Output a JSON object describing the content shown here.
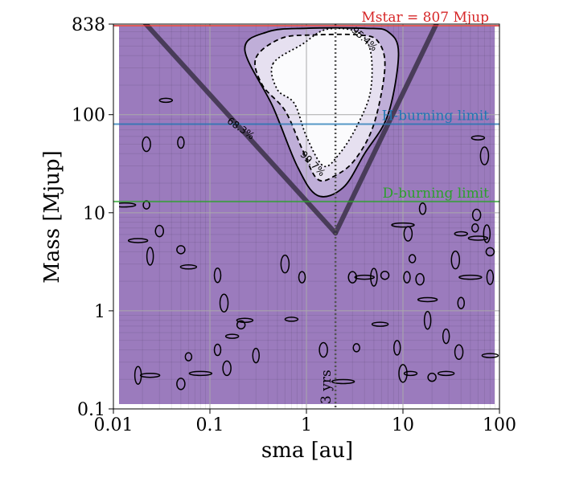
{
  "chart_data": {
    "type": "contour",
    "xlabel": "sma [au]",
    "ylabel": "Mass [Mjup]",
    "xscale": "log",
    "yscale": "log",
    "xlim": [
      0.01,
      100
    ],
    "ylim": [
      0.1,
      838
    ],
    "xticks": [
      {
        "value": 0.01,
        "label": "0.01"
      },
      {
        "value": 0.1,
        "label": "0.1"
      },
      {
        "value": 1,
        "label": "1"
      },
      {
        "value": 10,
        "label": "10"
      },
      {
        "value": 100,
        "label": "100"
      }
    ],
    "yticks": [
      {
        "value": 0.1,
        "label": "0.1"
      },
      {
        "value": 1,
        "label": "1"
      },
      {
        "value": 10,
        "label": "10"
      },
      {
        "value": 100,
        "label": "100"
      },
      {
        "value": 838,
        "label": "838"
      }
    ],
    "hlines": [
      {
        "name": "mstar",
        "label": "Mstar = 807 Mjup",
        "y": 807,
        "color": "#d62728"
      },
      {
        "name": "h-burning",
        "label": "H-burning limit",
        "y": 80,
        "color": "#1f77b4"
      },
      {
        "name": "d-burning",
        "label": "D-burning limit",
        "y": 13,
        "color": "#2ca02c"
      }
    ],
    "vline": {
      "label": "3 yrs",
      "x": 2.0
    },
    "v_shape": {
      "vertex": [
        2.0,
        6.2
      ],
      "left_end": [
        0.014,
        1350
      ],
      "right_end": [
        28,
        1350
      ]
    },
    "contour_levels": [
      {
        "label": "68.3%",
        "label_at": [
          0.2,
          68
        ]
      },
      {
        "label": "95.4%",
        "label_at": [
          3.8,
          560
        ]
      },
      {
        "label": "99.7%",
        "label_at": [
          1.1,
          30
        ]
      }
    ],
    "background_color": "#9b7bbd",
    "contours": {
      "level_68": [
        [
          0.23,
          460
        ],
        [
          0.4,
          700
        ],
        [
          1.0,
          760
        ],
        [
          4.0,
          760
        ],
        [
          7.0,
          700
        ],
        [
          9.0,
          420
        ],
        [
          7.0,
          100
        ],
        [
          4.0,
          40
        ],
        [
          2.4,
          18
        ],
        [
          1.3,
          15
        ],
        [
          0.8,
          30
        ],
        [
          0.45,
          120
        ]
      ],
      "level_95": [
        [
          0.3,
          380
        ],
        [
          0.55,
          600
        ],
        [
          1.2,
          650
        ],
        [
          3.5,
          650
        ],
        [
          5.5,
          560
        ],
        [
          6.5,
          300
        ],
        [
          5.0,
          80
        ],
        [
          3.2,
          35
        ],
        [
          2.0,
          24
        ],
        [
          1.3,
          22
        ],
        [
          0.9,
          45
        ],
        [
          0.6,
          110
        ],
        [
          0.35,
          200
        ]
      ],
      "level_997": [
        [
          0.45,
          330
        ],
        [
          0.9,
          520
        ],
        [
          1.6,
          740
        ],
        [
          3.3,
          700
        ],
        [
          4.6,
          450
        ],
        [
          4.6,
          170
        ],
        [
          3.3,
          75
        ],
        [
          2.2,
          40
        ],
        [
          1.5,
          30
        ],
        [
          1.0,
          60
        ],
        [
          0.75,
          130
        ],
        [
          0.5,
          180
        ]
      ]
    },
    "noise_blobs": [
      [
        0.035,
        140
      ],
      [
        0.05,
        52
      ],
      [
        0.022,
        50
      ],
      [
        0.013,
        12
      ],
      [
        0.022,
        12
      ],
      [
        0.03,
        6.5
      ],
      [
        0.018,
        5.2
      ],
      [
        0.024,
        3.6
      ],
      [
        0.05,
        4.2
      ],
      [
        0.06,
        2.8
      ],
      [
        0.12,
        2.3
      ],
      [
        0.14,
        1.2
      ],
      [
        0.17,
        0.55
      ],
      [
        0.12,
        0.4
      ],
      [
        0.15,
        0.26
      ],
      [
        0.08,
        0.23
      ],
      [
        0.06,
        0.34
      ],
      [
        0.05,
        0.18
      ],
      [
        0.024,
        0.22
      ],
      [
        0.018,
        0.22
      ],
      [
        0.21,
        0.72
      ],
      [
        0.23,
        0.8
      ],
      [
        0.3,
        0.35
      ],
      [
        0.6,
        3.0
      ],
      [
        0.7,
        0.82
      ],
      [
        0.9,
        2.2
      ],
      [
        1.5,
        0.4
      ],
      [
        2.4,
        0.19
      ],
      [
        3.3,
        0.42
      ],
      [
        3.0,
        2.2
      ],
      [
        4.0,
        2.2
      ],
      [
        5.0,
        2.2
      ],
      [
        6.5,
        2.3
      ],
      [
        5.8,
        0.73
      ],
      [
        8.7,
        0.42
      ],
      [
        10,
        0.23
      ],
      [
        12,
        0.23
      ],
      [
        11,
        2.2
      ],
      [
        11.3,
        6.1
      ],
      [
        10,
        7.5
      ],
      [
        12.5,
        3.4
      ],
      [
        15,
        2.1
      ],
      [
        18,
        1.3
      ],
      [
        18,
        0.8
      ],
      [
        20,
        0.21
      ],
      [
        28,
        0.23
      ],
      [
        28,
        0.55
      ],
      [
        35,
        3.3
      ],
      [
        40,
        6.1
      ],
      [
        40,
        1.2
      ],
      [
        38,
        0.38
      ],
      [
        50,
        2.2
      ],
      [
        56,
        7.0
      ],
      [
        58,
        9.5
      ],
      [
        60,
        5.5
      ],
      [
        74,
        6.1
      ],
      [
        80,
        4.0
      ],
      [
        80,
        0.35
      ],
      [
        80,
        2.2
      ],
      [
        70,
        38
      ],
      [
        60,
        58
      ],
      [
        16,
        11
      ]
    ]
  }
}
